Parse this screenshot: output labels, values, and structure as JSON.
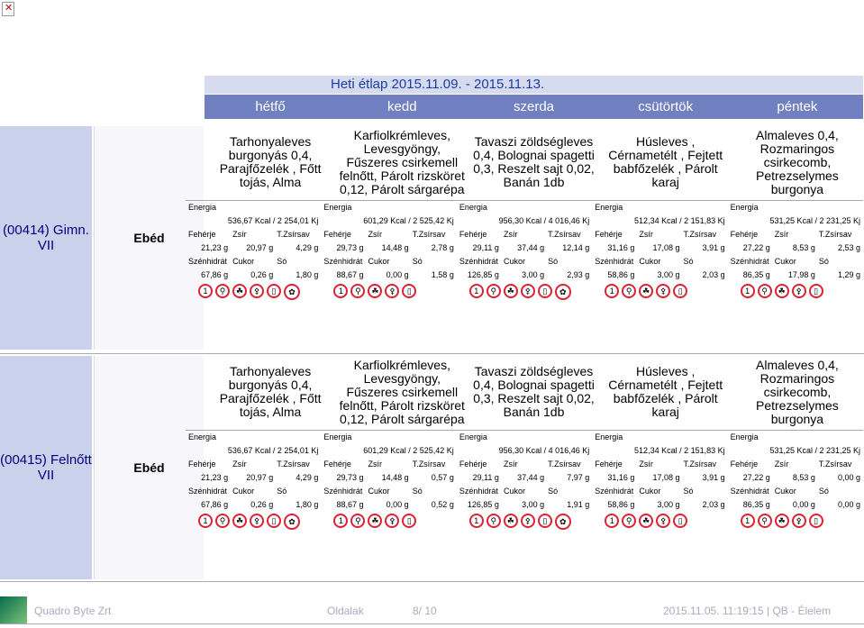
{
  "header": {
    "title": "Heti étlap 2015.11.09. - 2015.11.13.",
    "days": [
      "hétfő",
      "kedd",
      "szerda",
      "csütörtök",
      "péntek"
    ]
  },
  "labels": {
    "energia": "Energia",
    "cols1": [
      "Fehérje",
      "Zsír",
      "T.Zsírsav"
    ],
    "cols2": [
      "Szénhidrát",
      "Cukor",
      "Só"
    ]
  },
  "blocks": [
    {
      "group": "(00414) Gimn. VII",
      "meal": "Ebéd",
      "dishes": [
        "Tarhonyaleves burgonyás 0,4, Parajfőzelék , Főtt tojás, Alma",
        "Karfiolkrémleves, Levesgyöngy, Fűszeres csirkemell felnőtt, Párolt rizsköret 0,12, Párolt sárgarépa",
        "Tavaszi zöldségleves 0,4, Bolognai spagetti 0,3, Reszelt sajt 0,02, Banán 1db",
        "Húsleves , Cérnametélt , Fejtett babfőzelék , Párolt karaj",
        "Almaleves 0,4, Rozmaringos csirkecomb, Petrezselymes burgonya"
      ],
      "days": [
        {
          "energy": "536,67 Kcal / 2 254,01 Kj",
          "v1": [
            "21,23 g",
            "20,97 g",
            "4,29 g"
          ],
          "v2": [
            "67,86 g",
            "0,26 g",
            "1,80 g"
          ]
        },
        {
          "energy": "601,29 Kcal / 2 525,42 Kj",
          "v1": [
            "29,73 g",
            "14,48 g",
            "2,78 g"
          ],
          "v2": [
            "88,67 g",
            "0,00 g",
            "1,58 g"
          ]
        },
        {
          "energy": "956,30 Kcal / 4 016,46 Kj",
          "v1": [
            "29,11 g",
            "37,44 g",
            "12,14 g"
          ],
          "v2": [
            "126,85 g",
            "3,00 g",
            "2,93 g"
          ]
        },
        {
          "energy": "512,34 Kcal / 2 151,83 Kj",
          "v1": [
            "31,16 g",
            "17,08 g",
            "3,91 g"
          ],
          "v2": [
            "58,86 g",
            "3,00 g",
            "2,03 g"
          ]
        },
        {
          "energy": "531,25 Kcal / 2 231,25 Kj",
          "v1": [
            "27,22 g",
            "8,53 g",
            "2,53 g"
          ],
          "v2": [
            "86,35 g",
            "17,98 g",
            "1,29 g"
          ]
        }
      ]
    },
    {
      "group": "(00415) Felnőtt VII",
      "meal": "Ebéd",
      "dishes": [
        "Tarhonyaleves burgonyás 0,4, Parajfőzelék , Főtt tojás, Alma",
        "Karfiolkrémleves, Levesgyöngy, Fűszeres csirkemell felnőtt, Párolt rizsköret 0,12, Párolt sárgarépa",
        "Tavaszi zöldségleves 0,4, Bolognai spagetti 0,3, Reszelt sajt 0,02, Banán 1db",
        "Húsleves , Cérnametélt , Fejtett babfőzelék , Párolt karaj",
        "Almaleves 0,4, Rozmaringos csirkecomb, Petrezselymes burgonya"
      ],
      "days": [
        {
          "energy": "536,67 Kcal / 2 254,01 Kj",
          "v1": [
            "21,23 g",
            "20,97 g",
            "4,29 g"
          ],
          "v2": [
            "67,86 g",
            "0,26 g",
            "1,80 g"
          ]
        },
        {
          "energy": "601,29 Kcal / 2 525,42 Kj",
          "v1": [
            "29,73 g",
            "14,48 g",
            "0,57 g"
          ],
          "v2": [
            "88,67 g",
            "0,00 g",
            "0,52 g"
          ]
        },
        {
          "energy": "956,30 Kcal / 4 016,46 Kj",
          "v1": [
            "29,11 g",
            "37,44 g",
            "7,97 g"
          ],
          "v2": [
            "126,85 g",
            "3,00 g",
            "1,91 g"
          ]
        },
        {
          "energy": "512,34 Kcal / 2 151,83 Kj",
          "v1": [
            "31,16 g",
            "17,08 g",
            "3,91 g"
          ],
          "v2": [
            "58,86 g",
            "3,00 g",
            "2,03 g"
          ]
        },
        {
          "energy": "531,25 Kcal / 2 231,25 Kj",
          "v1": [
            "27,22 g",
            "8,53 g",
            "0,00 g"
          ],
          "v2": [
            "86,35 g",
            "0,00 g",
            "0,00 g"
          ]
        }
      ]
    }
  ],
  "footer": {
    "company": "Quadro Byte Zrt",
    "page_label": "Oldalak",
    "page": "8/ 10",
    "datetime": "2015.11.05. 11:19:15 | QB - Élelem"
  },
  "icons": {
    "allergen": "allergen-icon",
    "broken": "broken-image-icon"
  }
}
